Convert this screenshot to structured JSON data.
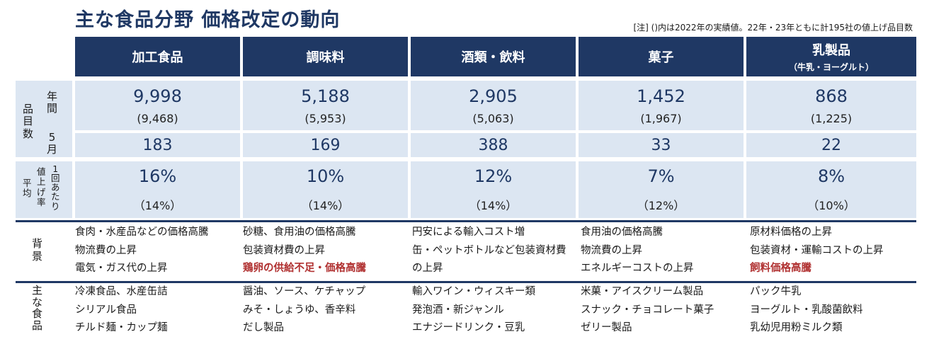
{
  "title": "主な食品分野  価格改定の動向",
  "note": "[注] ()内は2022年の実績値。22年・23年ともに計195社の値上げ品目数",
  "categories": [
    {
      "name": "加工食品",
      "sub": ""
    },
    {
      "name": "調味料",
      "sub": ""
    },
    {
      "name": "酒類・飲料",
      "sub": ""
    },
    {
      "name": "菓子",
      "sub": ""
    },
    {
      "name": "乳製品",
      "sub": "（牛乳・ヨーグルト）"
    }
  ],
  "labels": {
    "items": [
      "品",
      "目",
      "数"
    ],
    "annual": [
      "年",
      "間"
    ],
    "may": [
      "5",
      "月"
    ],
    "rate_outer": [
      "平",
      "均"
    ],
    "rate_mid": [
      "値",
      "上",
      "げ",
      "率"
    ],
    "rate_inner": [
      "1",
      "回",
      "あ",
      "た",
      "り"
    ],
    "background": [
      "背",
      "景"
    ],
    "foods": [
      "主",
      "な",
      "食",
      "品"
    ]
  },
  "annual": [
    "9,998",
    "5,188",
    "2,905",
    "1,452",
    "868"
  ],
  "annual_prev": [
    "(9,468)",
    "(5,953)",
    "(5,063)",
    "(1,967)",
    "(1,225)"
  ],
  "may": [
    "183",
    "169",
    "388",
    "33",
    "22"
  ],
  "rate": [
    "16%",
    "10%",
    "12%",
    "7%",
    "8%"
  ],
  "rate_prev": [
    "（14%）",
    "（14%）",
    "（14%）",
    "（12%）",
    "（10%）"
  ],
  "background": [
    [
      "食肉・水産品などの価格高騰",
      "物流費の上昇",
      "電気・ガス代の上昇"
    ],
    [
      "砂糖、食用油の価格高騰",
      "包装資材費の上昇",
      "鶏卵の供給不足・価格高騰"
    ],
    [
      "円安による輸入コスト増",
      "缶・ペットボトルなど包装資材費",
      "の上昇"
    ],
    [
      "食用油の価格高騰",
      "物流費の上昇",
      "エネルギーコストの上昇"
    ],
    [
      "原材料価格の上昇",
      "包装資材・運輸コストの上昇",
      "飼料価格高騰"
    ]
  ],
  "background_highlight_color": "#b03030",
  "foods": [
    [
      "冷凍食品、水産缶詰",
      "シリアル食品",
      "チルド麺・カップ麺"
    ],
    [
      "醤油、ソース、ケチャップ",
      "みそ・しょうゆ、香辛料",
      "だし製品"
    ],
    [
      "輸入ワイン・ウィスキー類",
      "発泡酒・新ジャンル",
      "エナジードリンク・豆乳"
    ],
    [
      "米菓・アイスクリーム製品",
      "スナック・チョコレート菓子",
      "ゼリー製品"
    ],
    [
      "パック牛乳",
      "ヨーグルト・乳酸菌飲料",
      "乳幼児用粉ミルク類"
    ]
  ],
  "colors": {
    "header": "#1f3864",
    "cell": "#dce6f2",
    "accent_text": "#1f3864"
  }
}
